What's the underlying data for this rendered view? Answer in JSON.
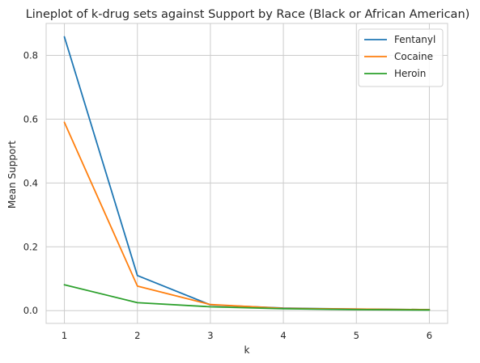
{
  "chart_data": {
    "type": "line",
    "title": "Lineplot of k-drug sets against Support by Race (Black or African American)",
    "xlabel": "k",
    "ylabel": "Mean Support",
    "x": [
      1,
      2,
      3,
      4,
      5,
      6
    ],
    "xticks": [
      "1",
      "2",
      "3",
      "4",
      "5",
      "6"
    ],
    "yticks": [
      "0.0",
      "0.2",
      "0.4",
      "0.6",
      "0.8"
    ],
    "xlim": [
      0.75,
      6.25
    ],
    "ylim": [
      -0.04,
      0.9
    ],
    "grid": true,
    "legend_position": "top-right",
    "series": [
      {
        "name": "Fentanyl",
        "color": "#1f77b4",
        "values": [
          0.858,
          0.11,
          0.018,
          0.008,
          0.005,
          0.003
        ]
      },
      {
        "name": "Cocaine",
        "color": "#ff7f0e",
        "values": [
          0.59,
          0.077,
          0.019,
          0.007,
          0.005,
          0.003
        ]
      },
      {
        "name": "Heroin",
        "color": "#2ca02c",
        "values": [
          0.081,
          0.025,
          0.012,
          0.006,
          0.003,
          0.002
        ]
      }
    ]
  }
}
